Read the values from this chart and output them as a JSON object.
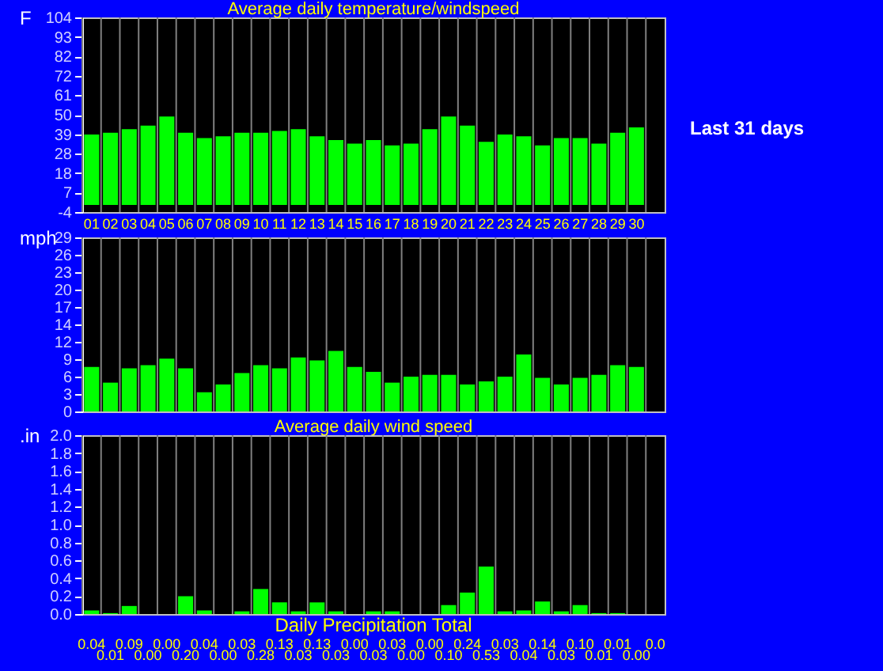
{
  "chart_data": [
    {
      "type": "bar",
      "title": "Average daily temperature/windspeed",
      "ylabel": "F",
      "categories": [
        "01",
        "02",
        "03",
        "04",
        "05",
        "06",
        "07",
        "08",
        "09",
        "10",
        "11",
        "12",
        "13",
        "14",
        "15",
        "16",
        "17",
        "18",
        "19",
        "20",
        "21",
        "22",
        "23",
        "24",
        "25",
        "26",
        "27",
        "28",
        "29",
        "30",
        null
      ],
      "values": [
        39,
        40,
        42,
        44,
        49,
        40,
        37,
        38,
        40,
        40,
        41,
        42,
        38,
        36,
        34,
        36,
        33,
        34,
        42,
        49,
        44,
        35,
        39,
        38,
        33,
        37,
        37,
        34,
        40,
        43,
        null
      ],
      "color": "#00ff00",
      "ylim": [
        -4,
        104
      ],
      "yticks": [
        -4,
        {
          "value": 6.8,
          "label": "7"
        },
        {
          "value": 17.6,
          "label": "18"
        },
        {
          "value": 28.4,
          "label": "28"
        },
        {
          "value": 39.2,
          "label": "39"
        },
        50,
        {
          "value": 60.8,
          "label": "61"
        },
        {
          "value": 71.6,
          "label": "72"
        },
        {
          "value": 82.4,
          "label": "82"
        },
        {
          "value": 93.2,
          "label": "93"
        },
        104
      ],
      "grid": "x",
      "annotations": [
        "Last 31 days"
      ]
    },
    {
      "type": "bar",
      "title": "Average daily wind speed",
      "ylabel": "mph",
      "categories": [
        null,
        null,
        null,
        null,
        null,
        null,
        null,
        null,
        null,
        null,
        null,
        null,
        null,
        null,
        null,
        null,
        null,
        null,
        null,
        null,
        null,
        null,
        null,
        null,
        null,
        null,
        null,
        null,
        null,
        null,
        null
      ],
      "values": [
        7.4,
        4.8,
        7.2,
        7.7,
        8.8,
        7.2,
        3.2,
        4.5,
        6.4,
        7.7,
        7.2,
        9.0,
        8.5,
        10.1,
        7.4,
        6.6,
        4.8,
        5.8,
        6.1,
        6.1,
        4.5,
        5.0,
        5.8,
        9.5,
        5.6,
        4.5,
        5.6,
        6.1,
        7.7,
        7.4,
        null
      ],
      "color": "#00ff00",
      "ylim": [
        0,
        29
      ],
      "yticks": [
        0,
        {
          "value": 2.9,
          "label": "3"
        },
        {
          "value": 5.8,
          "label": "6"
        },
        {
          "value": 8.7,
          "label": "9"
        },
        {
          "value": 11.6,
          "label": "12"
        },
        {
          "value": 14.5,
          "label": "14"
        },
        {
          "value": 17.4,
          "label": "17"
        },
        {
          "value": 20.3,
          "label": "20"
        },
        {
          "value": 23.2,
          "label": "23"
        },
        {
          "value": 26.1,
          "label": "26"
        },
        29
      ],
      "grid": "x",
      "tick_labels": "y"
    },
    {
      "type": "bar",
      "title": "Daily Precipitation Total",
      "ylabel": ".in",
      "categories": [
        null,
        null,
        null,
        null,
        null,
        null,
        null,
        null,
        null,
        null,
        null,
        null,
        null,
        null,
        null,
        null,
        null,
        null,
        null,
        null,
        null,
        null,
        null,
        null,
        null,
        null,
        null,
        null,
        null,
        null,
        null
      ],
      "values": [
        0.04,
        0.01,
        0.09,
        0.0,
        0.0,
        0.2,
        0.04,
        0.0,
        0.03,
        0.28,
        0.13,
        0.03,
        0.13,
        0.03,
        0.0,
        0.03,
        0.03,
        0.0,
        0.0,
        0.1,
        0.24,
        0.53,
        0.03,
        0.04,
        0.14,
        0.03,
        0.1,
        0.01,
        0.01,
        0.0,
        0
      ],
      "value_labels": [
        "0.04",
        "0.01",
        "0.09",
        "0.00",
        "0.00",
        "0.20",
        "0.04",
        "0.00",
        "0.03",
        "0.28",
        "0.13",
        "0.03",
        "0.13",
        "0.03",
        "0.00",
        "0.03",
        "0.03",
        "0.00",
        "0.00",
        "0.10",
        "0.24",
        "0.53",
        "0.03",
        "0.04",
        "0.14",
        "0.03",
        "0.10",
        "0.01",
        "0.01",
        "0.00",
        "0.0"
      ],
      "color": "#00ff00",
      "ylim": [
        0,
        2.0
      ],
      "yticks": [
        {
          "value": 0,
          "label": "0.0"
        },
        {
          "value": 0.2,
          "label": "0.2"
        },
        {
          "value": 0.4,
          "label": "0.4"
        },
        {
          "value": 0.6,
          "label": "0.6"
        },
        {
          "value": 0.8,
          "label": "0.8"
        },
        {
          "value": 1,
          "label": "1.0"
        },
        {
          "value": 1.2,
          "label": "1.2"
        },
        {
          "value": 1.4,
          "label": "1.4"
        },
        {
          "value": 1.6,
          "label": "1.6"
        },
        {
          "value": 1.8,
          "label": "1.8"
        },
        {
          "value": 2,
          "label": "2.0"
        }
      ],
      "grid": "x",
      "tick_labels": "y"
    }
  ]
}
